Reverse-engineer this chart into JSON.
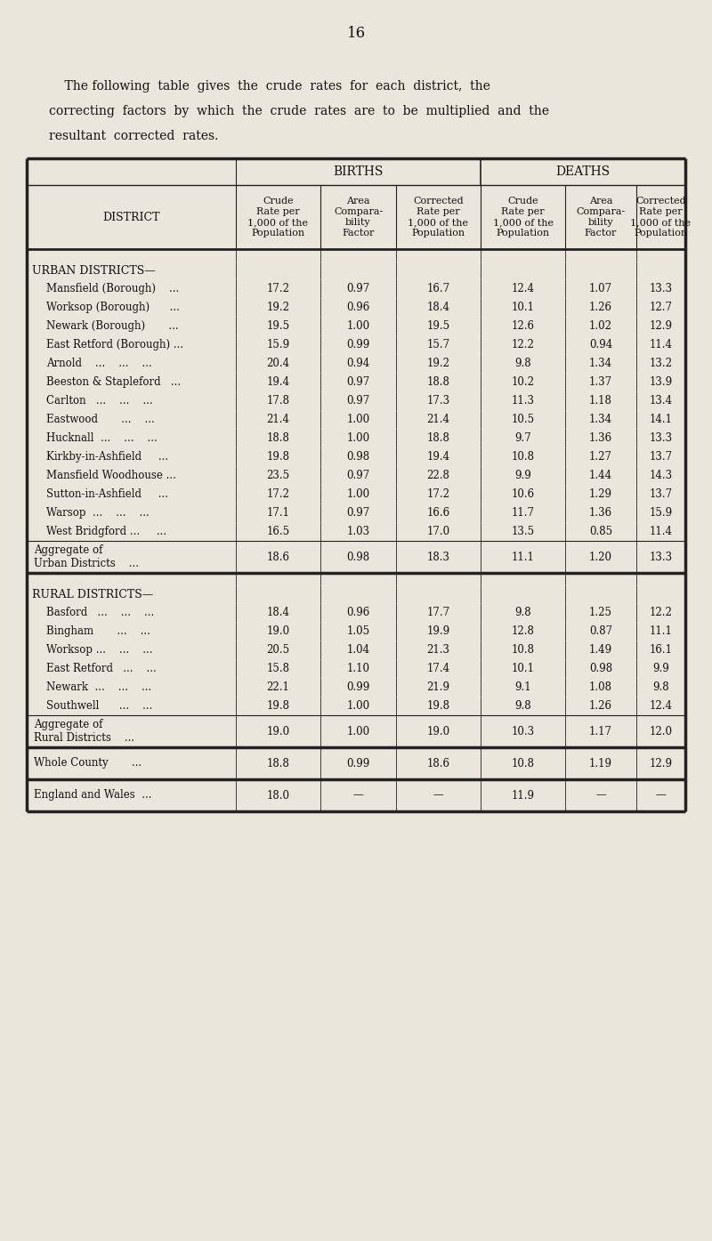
{
  "page_number": "16",
  "intro_line1": "    The following  table  gives  the  crude  rates  for  each  district,  the",
  "intro_line2": "correcting  factors  by  which  the  crude  rates  are  to  be  multiplied  and  the",
  "intro_line3": "resultant  corrected  rates.",
  "bg_color": "#eae6dc",
  "col_headers_sub": [
    "DISTRICT",
    "Crude\nRate per\n1,000 of the\nPopulation",
    "Area\nCompara-\nbility\nFactor",
    "Corrected\nRate per\n1,000 of the\nPopulation",
    "Crude\nRate per\n1,000 of the\nPopulation",
    "Area\nCompara-\nbility\nFactor",
    "Corrected\nRate per\n1,000 of the\nPopulation"
  ],
  "urban_header": "URBAN DISTRICTS—",
  "urban_rows": [
    [
      "Mansfield (Borough)    ...",
      "17.2",
      "0.97",
      "16.7",
      "12.4",
      "1.07",
      "13.3"
    ],
    [
      "Worksop (Borough)      ...",
      "19.2",
      "0.96",
      "18.4",
      "10.1",
      "1.26",
      "12.7"
    ],
    [
      "Newark (Borough)       ...",
      "19.5",
      "1.00",
      "19.5",
      "12.6",
      "1.02",
      "12.9"
    ],
    [
      "East Retford (Borough) ...",
      "15.9",
      "0.99",
      "15.7",
      "12.2",
      "0.94",
      "11.4"
    ],
    [
      "Arnold    ...    ...    ...",
      "20.4",
      "0.94",
      "19.2",
      "9.8",
      "1.34",
      "13.2"
    ],
    [
      "Beeston & Stapleford   ...",
      "19.4",
      "0.97",
      "18.8",
      "10.2",
      "1.37",
      "13.9"
    ],
    [
      "Carlton   ...    ...    ...",
      "17.8",
      "0.97",
      "17.3",
      "11.3",
      "1.18",
      "13.4"
    ],
    [
      "Eastwood       ...    ...",
      "21.4",
      "1.00",
      "21.4",
      "10.5",
      "1.34",
      "14.1"
    ],
    [
      "Hucknall  ...    ...    ...",
      "18.8",
      "1.00",
      "18.8",
      "9.7",
      "1.36",
      "13.3"
    ],
    [
      "Kirkby-in-Ashfield     ...",
      "19.8",
      "0.98",
      "19.4",
      "10.8",
      "1.27",
      "13.7"
    ],
    [
      "Mansfield Woodhouse ...",
      "23.5",
      "0.97",
      "22.8",
      "9.9",
      "1.44",
      "14.3"
    ],
    [
      "Sutton-in-Ashfield     ...",
      "17.2",
      "1.00",
      "17.2",
      "10.6",
      "1.29",
      "13.7"
    ],
    [
      "Warsop  ...    ...    ...",
      "17.1",
      "0.97",
      "16.6",
      "11.7",
      "1.36",
      "15.9"
    ],
    [
      "West Bridgford ...     ...",
      "16.5",
      "1.03",
      "17.0",
      "13.5",
      "0.85",
      "11.4"
    ]
  ],
  "urban_aggregate": [
    "Aggregate of\nUrban Districts    ...",
    "18.6",
    "0.98",
    "18.3",
    "11.1",
    "1.20",
    "13.3"
  ],
  "rural_header": "RURAL DISTRICTS—",
  "rural_rows": [
    [
      "Basford   ...    ...    ...",
      "18.4",
      "0.96",
      "17.7",
      "9.8",
      "1.25",
      "12.2"
    ],
    [
      "Bingham       ...    ...",
      "19.0",
      "1.05",
      "19.9",
      "12.8",
      "0.87",
      "11.1"
    ],
    [
      "Worksop ...    ...    ...",
      "20.5",
      "1.04",
      "21.3",
      "10.8",
      "1.49",
      "16.1"
    ],
    [
      "East Retford   ...    ...",
      "15.8",
      "1.10",
      "17.4",
      "10.1",
      "0.98",
      "9.9"
    ],
    [
      "Newark  ...    ...    ...",
      "22.1",
      "0.99",
      "21.9",
      "9.1",
      "1.08",
      "9.8"
    ],
    [
      "Southwell      ...    ...",
      "19.8",
      "1.00",
      "19.8",
      "9.8",
      "1.26",
      "12.4"
    ]
  ],
  "rural_aggregate": [
    "Aggregate of\nRural Districts    ...",
    "19.0",
    "1.00",
    "19.0",
    "10.3",
    "1.17",
    "12.0"
  ],
  "whole_county": [
    "Whole County       ...",
    "18.8",
    "0.99",
    "18.6",
    "10.8",
    "1.19",
    "12.9"
  ],
  "england_wales": [
    "England and Wales  ...",
    "18.0",
    "—",
    "—",
    "11.9",
    "—",
    "—"
  ]
}
